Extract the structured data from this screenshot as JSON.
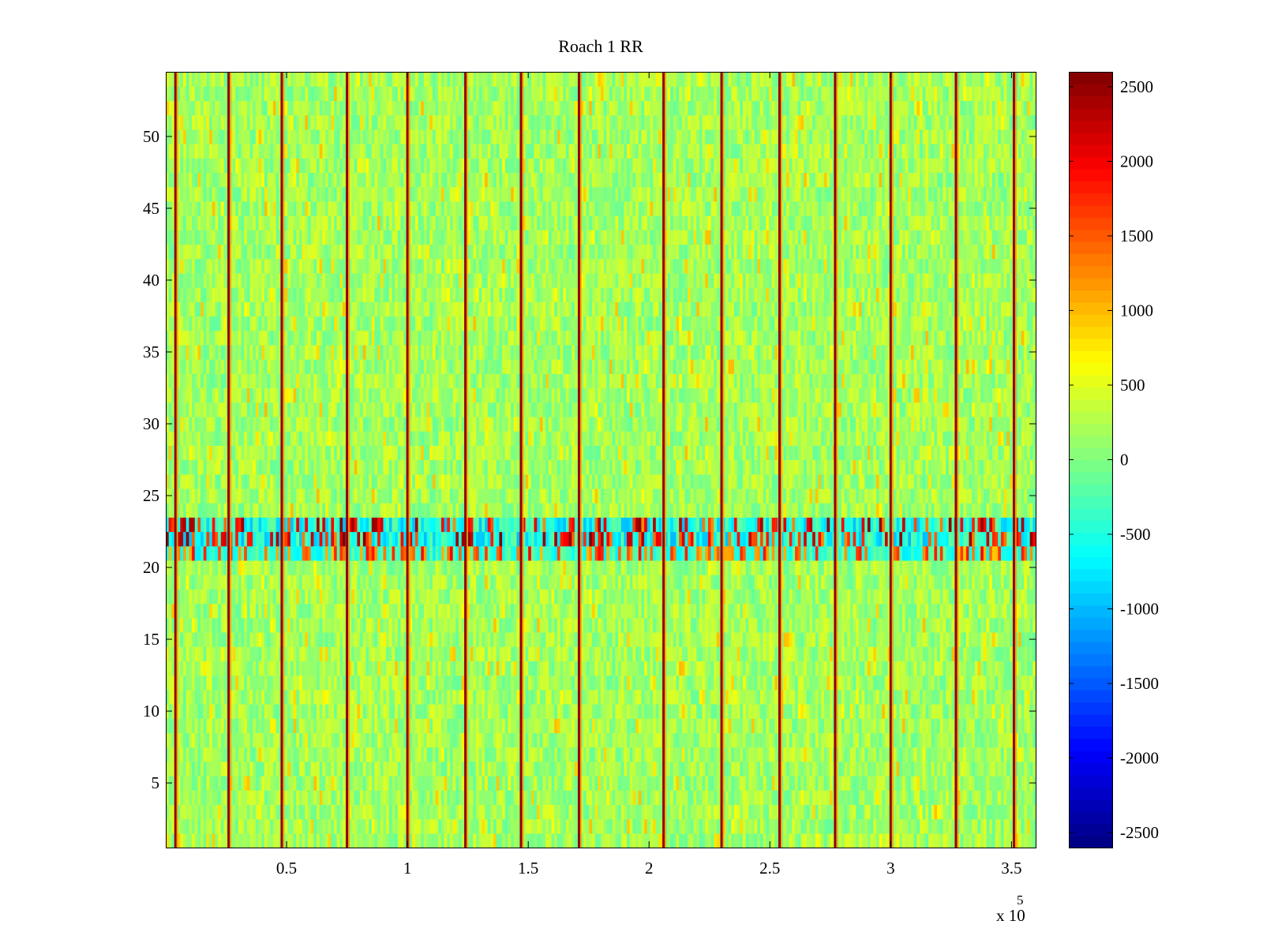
{
  "chart_data": {
    "type": "heatmap",
    "title": "Roach 1 RR",
    "xlabel": "",
    "ylabel": "",
    "x_exponent_label": {
      "base": "x 10",
      "power": "5"
    },
    "xlim": [
      0,
      3.6
    ],
    "ylim": [
      0.5,
      54.5
    ],
    "x_ticks": [
      0.5,
      1,
      1.5,
      2,
      2.5,
      3,
      3.5
    ],
    "x_tick_labels": [
      "0.5",
      "1",
      "1.5",
      "2",
      "2.5",
      "3",
      "3.5"
    ],
    "y_ticks": [
      5,
      10,
      15,
      20,
      25,
      30,
      35,
      40,
      45,
      50
    ],
    "y_tick_labels": [
      "5",
      "10",
      "15",
      "20",
      "25",
      "30",
      "35",
      "40",
      "45",
      "50"
    ],
    "colormap": "jet",
    "clim": [
      -2600,
      2600
    ],
    "colorbar_ticks": [
      2500,
      2000,
      1500,
      1000,
      500,
      0,
      -500,
      -1000,
      -1500,
      -2000,
      -2500
    ],
    "colorbar_tick_labels": [
      "2500",
      "2000",
      "1500",
      "1000",
      "500",
      "0",
      "-500",
      "-1000",
      "-1500",
      "-2000",
      "-2500"
    ],
    "rows": 54,
    "background_value_range": [
      -500,
      500
    ],
    "strong_columns_x": [
      0.04,
      0.26,
      0.48,
      0.75,
      1.0,
      1.24,
      1.47,
      1.71,
      2.06,
      2.3,
      2.54,
      2.77,
      3.0,
      3.27,
      3.51
    ],
    "anomaly_band_rows": [
      21,
      23
    ],
    "anomaly_band_value_range": [
      -1000,
      2600
    ]
  }
}
